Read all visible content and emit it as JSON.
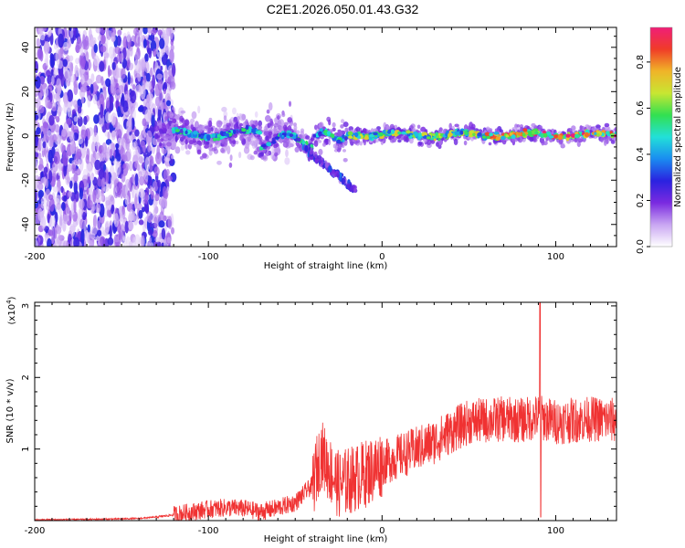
{
  "title": "C2E1.2026.050.01.43.G32",
  "chart_data": [
    {
      "type": "heatmap",
      "title": "C2E1.2026.050.01.43.G32",
      "xlabel": "Height of straight line (km)",
      "ylabel": "Frequency (Hz)",
      "xlim": [
        -200,
        135
      ],
      "ylim": [
        -50,
        49
      ],
      "xticks": [
        "-200",
        "-100",
        "0",
        "100"
      ],
      "yticks": [
        "40",
        "20",
        "0",
        "-20",
        "-40"
      ],
      "colorbar": {
        "label": "Normalized spectral amplitude",
        "range": [
          0.0,
          0.95
        ],
        "ticks": [
          "0.0",
          "0.2",
          "0.4",
          "0.6",
          "0.8"
        ],
        "colors": [
          "#ffffff",
          "#c9a6f2",
          "#7a2ae0",
          "#2a22e0",
          "#1a8cf0",
          "#22e0d8",
          "#32e050",
          "#c8e632",
          "#f0b428",
          "#f03c28",
          "#f01e78"
        ]
      },
      "features": [
        {
          "name": "scattered noise",
          "x_range": [
            -200,
            -120
          ],
          "freq_range": [
            -50,
            49
          ]
        },
        {
          "name": "carrier trace",
          "x_range": [
            -130,
            135
          ],
          "freq_center": 0.5
        },
        {
          "name": "descending branch",
          "x_range": [
            -45,
            -15
          ],
          "freq_range": [
            -25,
            -5
          ]
        }
      ]
    },
    {
      "type": "line",
      "xlabel": "Height of straight line (km)",
      "ylabel": "SNR (10 * v/v)",
      "ymultiplier": "(x10",
      "ymultiplier_exp": "4",
      "ymultiplier_close": ")",
      "xlim": [
        -200,
        135
      ],
      "ylim": [
        0,
        3.05
      ],
      "xticks": [
        "-200",
        "-100",
        "0",
        "100"
      ],
      "yticks": [
        "3",
        "2",
        "1"
      ],
      "color": "#f03232",
      "x": [
        -200,
        -160,
        -140,
        -130,
        -120,
        -110,
        -100,
        -90,
        -80,
        -70,
        -60,
        -50,
        -40,
        -35,
        -30,
        -25,
        -20,
        -15,
        -10,
        -5,
        0,
        10,
        20,
        30,
        40,
        50,
        60,
        70,
        80,
        90,
        100,
        110,
        120,
        135
      ],
      "values": [
        0.01,
        0.02,
        0.03,
        0.05,
        0.08,
        0.12,
        0.16,
        0.18,
        0.17,
        0.12,
        0.18,
        0.25,
        0.5,
        0.95,
        0.7,
        0.5,
        0.55,
        0.6,
        0.65,
        0.72,
        0.8,
        0.9,
        1.0,
        1.1,
        1.25,
        1.38,
        1.4,
        1.42,
        1.4,
        1.45,
        1.38,
        1.4,
        1.42,
        1.4
      ],
      "spike": {
        "x": 91,
        "value": 3.05
      }
    }
  ]
}
